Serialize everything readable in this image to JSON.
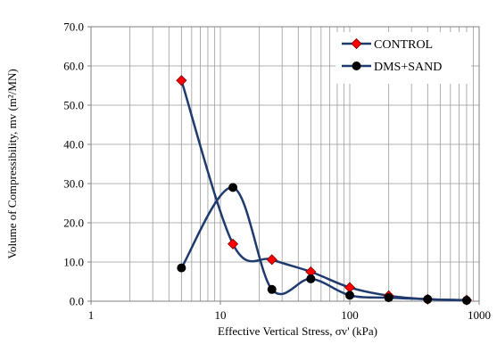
{
  "chart_data": {
    "type": "line",
    "xscale": "log",
    "x_ticks": [
      1,
      10,
      100,
      1000
    ],
    "x_tick_labels": [
      "1",
      "10",
      "100",
      "1000"
    ],
    "y_ticks": [
      0,
      10,
      20,
      30,
      40,
      50,
      60,
      70
    ],
    "y_tick_labels": [
      "0.0",
      "10.0",
      "20.0",
      "30.0",
      "40.0",
      "50.0",
      "60.0",
      "70.0"
    ],
    "xlim": [
      1,
      1000
    ],
    "ylim": [
      0,
      70
    ],
    "xlabel": "Effective Vertical Stress, σv'  (kPa)",
    "ylabel": "Volume of Compressibility, mv (m²/MN)",
    "grid": "log-minor vertical and major horizontal",
    "legend_position": "top-right",
    "series": [
      {
        "name": "CONTROL",
        "marker": "diamond",
        "marker_color": "#ff0000",
        "line_color": "#1f3a6e",
        "x": [
          5,
          12.5,
          25,
          50,
          100,
          200,
          400,
          800
        ],
        "y": [
          56.3,
          14.6,
          10.6,
          7.5,
          3.5,
          1.4,
          0.5,
          0.3
        ]
      },
      {
        "name": "DMS+SAND",
        "marker": "circle",
        "marker_color": "#000000",
        "line_color": "#1f3a6e",
        "x": [
          5,
          12.5,
          25,
          50,
          100,
          200,
          400,
          800
        ],
        "y": [
          8.5,
          29.0,
          3.0,
          5.7,
          1.5,
          0.9,
          0.5,
          0.2
        ]
      }
    ]
  }
}
